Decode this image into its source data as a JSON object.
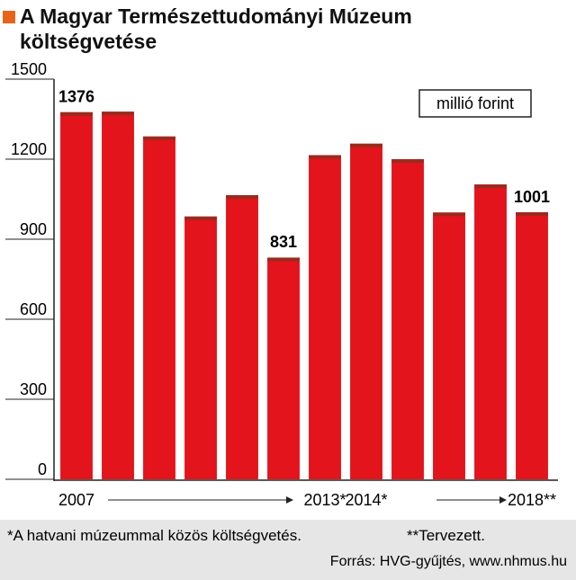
{
  "chart_data": {
    "type": "bar",
    "title": "A Magyar Természettudományi Múzeum költségvetése",
    "unit_label": "millió forint",
    "categories": [
      "2007",
      null,
      null,
      null,
      null,
      null,
      "2013*",
      "2014*",
      null,
      null,
      null,
      "2018**"
    ],
    "values": [
      1376,
      1378,
      1285,
      985,
      1065,
      831,
      1215,
      1258,
      1200,
      1000,
      1105,
      1001
    ],
    "value_labels": [
      "1376",
      null,
      null,
      null,
      null,
      "831",
      null,
      null,
      null,
      null,
      null,
      "1001"
    ],
    "color": "#e3141b",
    "ylim": [
      0,
      1500
    ],
    "yticks": [
      0,
      300,
      600,
      900,
      1200,
      1500
    ],
    "footnote": "*A hatvani múzeummal közös költségvetés.",
    "footnote2": "**Tervezett.",
    "source": "Forrás: HVG-gyűjtés, www.nhmus.hu"
  }
}
